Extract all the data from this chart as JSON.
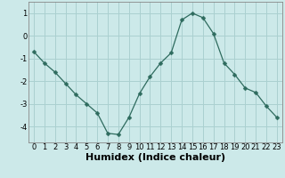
{
  "x": [
    0,
    1,
    2,
    3,
    4,
    5,
    6,
    7,
    8,
    9,
    10,
    11,
    12,
    13,
    14,
    15,
    16,
    17,
    18,
    19,
    20,
    21,
    22,
    23
  ],
  "y": [
    -0.7,
    -1.2,
    -1.6,
    -2.1,
    -2.6,
    -3.0,
    -3.4,
    -4.3,
    -4.35,
    -3.6,
    -2.55,
    -1.8,
    -1.2,
    -0.75,
    0.7,
    1.0,
    0.8,
    0.1,
    -1.2,
    -1.7,
    -2.3,
    -2.5,
    -3.1,
    -3.6
  ],
  "line_color": "#2e6b5e",
  "marker": "D",
  "marker_size": 2.5,
  "bg_color": "#cce9e9",
  "grid_color": "#aad0d0",
  "xlabel": "Humidex (Indice chaleur)",
  "ylim": [
    -4.7,
    1.5
  ],
  "xlim": [
    -0.5,
    23.5
  ],
  "yticks": [
    -4,
    -3,
    -2,
    -1,
    0,
    1
  ],
  "xticks": [
    0,
    1,
    2,
    3,
    4,
    5,
    6,
    7,
    8,
    9,
    10,
    11,
    12,
    13,
    14,
    15,
    16,
    17,
    18,
    19,
    20,
    21,
    22,
    23
  ],
  "tick_label_fontsize": 6.0,
  "xlabel_fontsize": 8.0
}
